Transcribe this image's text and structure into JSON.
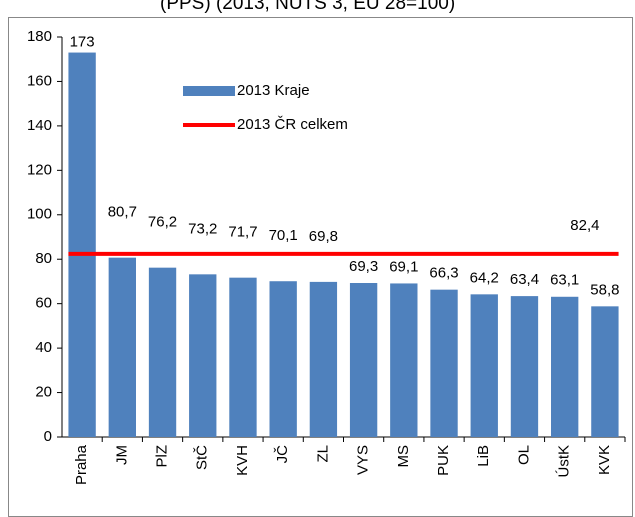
{
  "chart_data": {
    "type": "bar",
    "title": "(PPS) (2013, NUTS 3, EU 28=100)",
    "categories": [
      "Praha",
      "JM",
      "PlZ",
      "StČ",
      "KVH",
      "JČ",
      "ZL",
      "VYS",
      "MS",
      "PUK",
      "LiB",
      "OL",
      "ÚstK",
      "KVK"
    ],
    "series": [
      {
        "name": "2013 Kraje",
        "color": "#4f81bd",
        "values": [
          173,
          80.7,
          76.2,
          73.2,
          71.7,
          70.1,
          69.8,
          69.3,
          69.1,
          66.3,
          64.2,
          63.4,
          63.1,
          58.8
        ],
        "value_labels": [
          "173",
          "80,7",
          "76,2",
          "73,2",
          "71,7",
          "70,1",
          "69,8",
          "69,3",
          "69,1",
          "66,3",
          "64,2",
          "63,4",
          "63,1",
          "58,8"
        ]
      }
    ],
    "reference_line": {
      "name": "2013 ČR celkem",
      "color": "#ff0000",
      "value": 82.4,
      "value_label": "82,4"
    },
    "ylim": [
      0,
      180
    ],
    "yticks": [
      0,
      20,
      40,
      60,
      80,
      100,
      120,
      140,
      160,
      180
    ]
  }
}
